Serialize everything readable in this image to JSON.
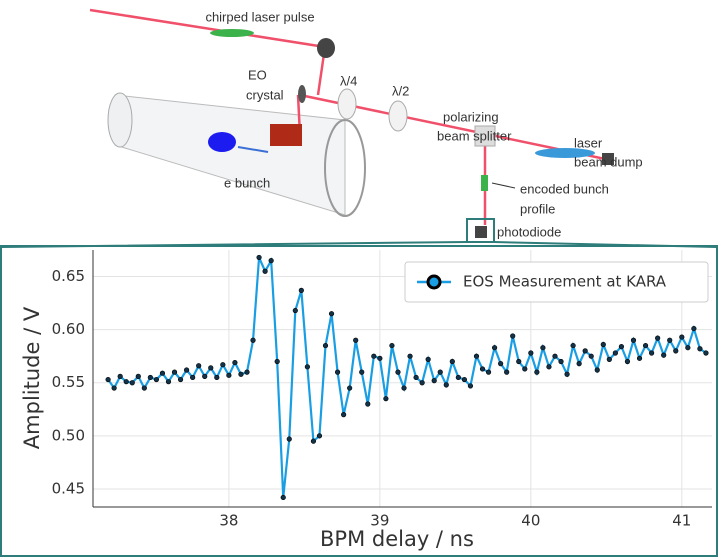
{
  "diagram": {
    "labels": [
      "chirped laser pulse",
      "EO",
      "crystal",
      "λ/4",
      "λ/2",
      "polarizing",
      "beam splitter",
      "laser",
      "beam dump",
      "e bunch",
      "encoded bunch",
      "profile",
      "photodiode"
    ]
  },
  "chart_data": {
    "type": "line",
    "x_label": "BPM delay / ns",
    "y_label": "Amplitude / V",
    "x": [
      37.2,
      37.24,
      37.28,
      37.32,
      37.36,
      37.4,
      37.44,
      37.48,
      37.52,
      37.56,
      37.6,
      37.64,
      37.68,
      37.72,
      37.76,
      37.8,
      37.84,
      37.88,
      37.92,
      37.96,
      38,
      38.04,
      38.08,
      38.12,
      38.16,
      38.2,
      38.24,
      38.28,
      38.32,
      38.36,
      38.4,
      38.44,
      38.48,
      38.52,
      38.56,
      38.6,
      38.64,
      38.68,
      38.72,
      38.76,
      38.8,
      38.84,
      38.88,
      38.92,
      38.96,
      39,
      39.04,
      39.08,
      39.12,
      39.16,
      39.2,
      39.24,
      39.28,
      39.32,
      39.36,
      39.4,
      39.44,
      39.48,
      39.52,
      39.56,
      39.6,
      39.64,
      39.68,
      39.72,
      39.76,
      39.8,
      39.84,
      39.88,
      39.92,
      39.96,
      40,
      40.04,
      40.08,
      40.12,
      40.16,
      40.2,
      40.24,
      40.28,
      40.32,
      40.36,
      40.4,
      40.44,
      40.48,
      40.52,
      40.56,
      40.6,
      40.64,
      40.68,
      40.72,
      40.76,
      40.8,
      40.84,
      40.88,
      40.92,
      40.96,
      41,
      41.04,
      41.08,
      41.12,
      41.16
    ],
    "series": [
      {
        "name": "EOS Measurement at KARA",
        "color": "#1a9ee3",
        "marker_color": "#123249",
        "values": [
          0.553,
          0.545,
          0.556,
          0.551,
          0.55,
          0.556,
          0.545,
          0.555,
          0.553,
          0.559,
          0.551,
          0.56,
          0.553,
          0.562,
          0.555,
          0.566,
          0.556,
          0.564,
          0.555,
          0.567,
          0.557,
          0.569,
          0.558,
          0.56,
          0.59,
          0.668,
          0.655,
          0.665,
          0.57,
          0.442,
          0.497,
          0.618,
          0.637,
          0.565,
          0.495,
          0.5,
          0.585,
          0.615,
          0.56,
          0.52,
          0.545,
          0.59,
          0.56,
          0.53,
          0.575,
          0.573,
          0.535,
          0.585,
          0.56,
          0.545,
          0.575,
          0.555,
          0.55,
          0.572,
          0.552,
          0.56,
          0.548,
          0.57,
          0.555,
          0.553,
          0.547,
          0.575,
          0.563,
          0.56,
          0.583,
          0.568,
          0.56,
          0.594,
          0.57,
          0.563,
          0.578,
          0.56,
          0.583,
          0.565,
          0.575,
          0.57,
          0.558,
          0.585,
          0.568,
          0.58,
          0.575,
          0.562,
          0.586,
          0.572,
          0.578,
          0.584,
          0.57,
          0.59,
          0.573,
          0.585,
          0.578,
          0.592,
          0.576,
          0.59,
          0.58,
          0.593,
          0.583,
          0.601,
          0.582,
          0.578
        ]
      }
    ],
    "xlim": [
      37.1,
      41.2
    ],
    "ylim": [
      0.433,
      0.675
    ],
    "xticks": [
      38,
      39,
      40,
      41
    ],
    "yticks": [
      0.45,
      {
        "value": 0.5,
        "label": "0.50"
      },
      0.55,
      {
        "value": 0.6,
        "label": "0.60"
      },
      0.65
    ],
    "grid": true,
    "legend": "upper right"
  }
}
